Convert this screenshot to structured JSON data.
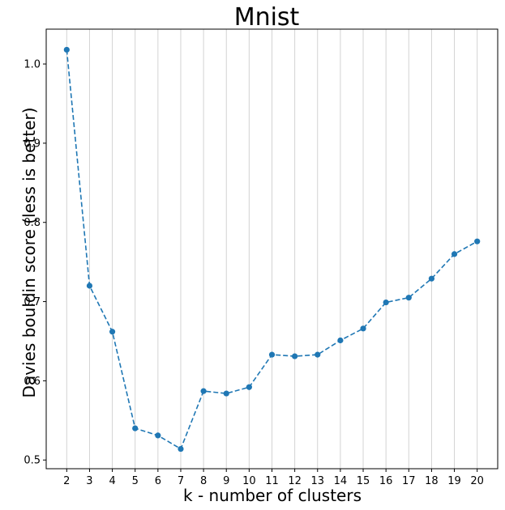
{
  "chart_data": {
    "type": "line",
    "title": "Mnist",
    "xlabel": "k - number of clusters",
    "ylabel": "Davies bouldin score (less is better)",
    "x": [
      2,
      3,
      4,
      5,
      6,
      7,
      8,
      9,
      10,
      11,
      12,
      13,
      14,
      15,
      16,
      17,
      18,
      19,
      20
    ],
    "series": [
      {
        "values": [
          1.018,
          0.72,
          0.662,
          0.54,
          0.531,
          0.514,
          0.587,
          0.584,
          0.592,
          0.633,
          0.631,
          0.633,
          0.651,
          0.666,
          0.699,
          0.705,
          0.729,
          0.76,
          0.776
        ],
        "color": "#1f77b4",
        "line_style": "dashed",
        "marker": "circle"
      }
    ],
    "xlim": [
      1.1,
      20.9
    ],
    "ylim": [
      0.489,
      1.044
    ],
    "x_ticks": [
      "2",
      "3",
      "4",
      "5",
      "6",
      "7",
      "8",
      "9",
      "10",
      "11",
      "12",
      "13",
      "14",
      "15",
      "16",
      "17",
      "18",
      "19",
      "20"
    ],
    "y_ticks": [
      "0.5",
      "0.6",
      "0.7",
      "0.8",
      "0.9",
      "1.0"
    ],
    "y_tick_values": [
      0.5,
      0.6,
      0.7,
      0.8,
      0.9,
      1.0
    ],
    "grid": "vertical",
    "grid_color": "#d3d3d3",
    "legend": "none"
  }
}
